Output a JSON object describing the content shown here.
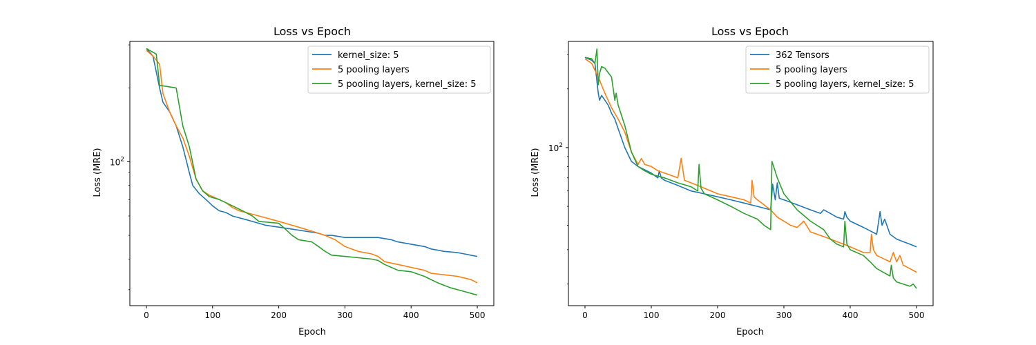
{
  "chart_data": [
    {
      "type": "line",
      "title": "Loss vs Epoch",
      "xlabel": "Epoch",
      "ylabel": "Loss (MRE)",
      "xscale": "linear",
      "yscale": "log",
      "xlim": [
        -25,
        525
      ],
      "ylim": [
        25.8,
        310
      ],
      "xticks": [
        0,
        100,
        200,
        300,
        400,
        500
      ],
      "yticks": [
        {
          "value": 100,
          "base": "10",
          "exp": "2"
        }
      ],
      "grid": false,
      "legend_position": "top-right",
      "series": [
        {
          "name": "kernel_size: 5",
          "color": "#1f77b4",
          "x": [
            0,
            10,
            20,
            25,
            35,
            45,
            55,
            65,
            70,
            80,
            90,
            100,
            110,
            120,
            130,
            140,
            150,
            160,
            170,
            180,
            200,
            220,
            240,
            260,
            270,
            280,
            300,
            320,
            350,
            370,
            380,
            400,
            420,
            430,
            450,
            470,
            480,
            490,
            500
          ],
          "y": [
            290,
            270,
            200,
            175,
            160,
            140,
            115,
            90,
            80,
            74,
            70,
            66,
            63,
            62,
            60,
            59,
            58,
            57,
            56,
            55,
            54,
            53,
            52,
            51,
            50,
            50,
            49,
            49,
            49,
            48,
            47,
            46,
            45,
            44,
            43,
            42.5,
            42,
            41.5,
            41
          ]
        },
        {
          "name": "5 pooling layers",
          "color": "#ff7f0e",
          "x": [
            0,
            10,
            20,
            25,
            35,
            45,
            55,
            65,
            75,
            85,
            95,
            110,
            120,
            130,
            140,
            150,
            170,
            190,
            210,
            230,
            250,
            270,
            285,
            300,
            320,
            340,
            350,
            360,
            380,
            400,
            420,
            430,
            450,
            470,
            480,
            490,
            500
          ],
          "y": [
            285,
            270,
            250,
            190,
            160,
            140,
            125,
            105,
            85,
            76,
            73,
            70,
            68,
            65,
            63,
            62,
            60,
            58,
            56,
            54,
            52,
            50,
            48,
            45,
            43,
            42,
            41,
            39,
            38,
            37,
            36,
            35,
            34.5,
            34,
            33.5,
            33,
            32
          ]
        },
        {
          "name": "5 pooling layers, kernel_size: 5",
          "color": "#2ca02c",
          "x": [
            0,
            15,
            20,
            45,
            55,
            65,
            75,
            85,
            95,
            110,
            120,
            130,
            140,
            150,
            160,
            170,
            200,
            210,
            220,
            230,
            250,
            260,
            270,
            280,
            300,
            320,
            340,
            350,
            360,
            370,
            380,
            400,
            420,
            440,
            460,
            480,
            500
          ],
          "y": [
            290,
            275,
            205,
            200,
            140,
            115,
            85,
            76,
            72,
            70,
            68,
            66,
            64,
            62,
            60,
            57,
            56,
            53,
            50,
            48,
            47,
            45,
            43,
            41.5,
            41,
            40.5,
            40,
            39.5,
            38,
            37,
            36,
            35.5,
            34,
            32,
            30.5,
            29.5,
            28.5
          ]
        }
      ]
    },
    {
      "type": "line",
      "title": "Loss vs Epoch",
      "xlabel": "Epoch",
      "ylabel": "Loss (MRE)",
      "xscale": "linear",
      "yscale": "log",
      "xlim": [
        -25,
        525
      ],
      "ylim": [
        15.5,
        350
      ],
      "xticks": [
        0,
        100,
        200,
        300,
        400,
        500
      ],
      "yticks": [
        {
          "value": 100,
          "base": "10",
          "exp": "2"
        }
      ],
      "grid": false,
      "legend_position": "top-right",
      "series": [
        {
          "name": "362 Tensors",
          "color": "#1f77b4",
          "x": [
            0,
            10,
            15,
            20,
            22,
            25,
            30,
            35,
            40,
            45,
            50,
            60,
            70,
            80,
            90,
            100,
            110,
            112,
            115,
            120,
            130,
            140,
            150,
            160,
            180,
            200,
            220,
            240,
            260,
            280,
            283,
            287,
            290,
            293,
            300,
            320,
            340,
            355,
            360,
            370,
            380,
            390,
            392,
            395,
            400,
            420,
            440,
            445,
            448,
            452,
            460,
            470,
            480,
            490,
            500
          ],
          "y": [
            290,
            280,
            270,
            190,
            175,
            185,
            175,
            165,
            150,
            140,
            125,
            100,
            85,
            80,
            77,
            74,
            70,
            76,
            70,
            68,
            66,
            64,
            62,
            60,
            58,
            56,
            54,
            52,
            50,
            48,
            65,
            54,
            66,
            55,
            54,
            51,
            48,
            46,
            48,
            46,
            44,
            43,
            47,
            44,
            42,
            39,
            36,
            47,
            40,
            43,
            36,
            34,
            33,
            32,
            31
          ]
        },
        {
          "name": "5 pooling layers",
          "color": "#ff7f0e",
          "x": [
            0,
            10,
            20,
            30,
            40,
            50,
            60,
            70,
            80,
            85,
            90,
            100,
            110,
            120,
            130,
            140,
            145,
            150,
            160,
            170,
            180,
            200,
            220,
            240,
            250,
            252,
            255,
            260,
            280,
            290,
            300,
            310,
            320,
            330,
            340,
            350,
            360,
            370,
            380,
            390,
            400,
            410,
            420,
            430,
            432,
            435,
            440,
            450,
            460,
            465,
            470,
            475,
            480,
            490,
            500
          ],
          "y": [
            285,
            270,
            230,
            190,
            160,
            140,
            120,
            95,
            82,
            88,
            82,
            80,
            76,
            74,
            72,
            70,
            88,
            68,
            66,
            64,
            62,
            58,
            56,
            54,
            52,
            68,
            56,
            54,
            48,
            44,
            42,
            40,
            39,
            42,
            37,
            36,
            35,
            34,
            33,
            32,
            31,
            30,
            29,
            29,
            36,
            30,
            28,
            27,
            26,
            29,
            26,
            28,
            25,
            24,
            23
          ]
        },
        {
          "name": "5 pooling layers, kernel_size: 5",
          "color": "#2ca02c",
          "x": [
            0,
            10,
            15,
            18,
            20,
            22,
            25,
            30,
            40,
            45,
            47,
            50,
            60,
            70,
            80,
            90,
            100,
            120,
            140,
            160,
            170,
            172,
            175,
            180,
            200,
            220,
            240,
            260,
            270,
            280,
            282,
            290,
            300,
            320,
            340,
            360,
            370,
            380,
            390,
            392,
            395,
            400,
            420,
            430,
            440,
            460,
            462,
            465,
            470,
            480,
            490,
            495,
            500
          ],
          "y": [
            290,
            285,
            270,
            320,
            210,
            240,
            260,
            255,
            230,
            175,
            190,
            165,
            130,
            95,
            80,
            76,
            73,
            70,
            66,
            63,
            60,
            82,
            62,
            58,
            54,
            50,
            46,
            43,
            40,
            38,
            85,
            70,
            58,
            48,
            42,
            38,
            34,
            32,
            31,
            42,
            32,
            30,
            28,
            26,
            24,
            22,
            25,
            21.5,
            20.5,
            20,
            19.5,
            20,
            19
          ]
        }
      ]
    }
  ]
}
